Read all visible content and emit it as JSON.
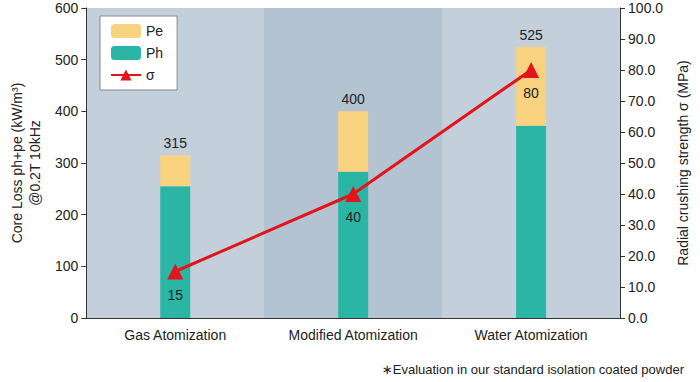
{
  "chart_data": {
    "type": "bar",
    "categories": [
      "Gas Atomization",
      "Modified Atomization",
      "Water Atomization"
    ],
    "series": [
      {
        "name": "Ph",
        "type": "bar",
        "color": "#2bb5a5",
        "values": [
          255,
          283,
          372
        ]
      },
      {
        "name": "Pe",
        "type": "bar",
        "color": "#f8d27e",
        "values": [
          60,
          117,
          153
        ]
      },
      {
        "name": "σ",
        "type": "line",
        "axis": "y2",
        "color": "#e3141c",
        "marker": "triangle",
        "data_labels": true,
        "values": [
          15,
          40,
          80
        ]
      }
    ],
    "totals": [
      315,
      400,
      525
    ],
    "stacked": true,
    "ylabel": "Core Loss ph+pe (kW/m³)\n@0.2T 10kHz",
    "y2label": "Radial crushing strength σ (MPa)",
    "ylim": [
      0,
      600
    ],
    "yticks": [
      0,
      100,
      200,
      300,
      400,
      500,
      600
    ],
    "y2lim": [
      0,
      100
    ],
    "y2ticks": [
      {
        "value": 0,
        "label": "0.0"
      },
      {
        "value": 10,
        "label": "10.0"
      },
      {
        "value": 20,
        "label": "20.0"
      },
      {
        "value": 30,
        "label": "30.0"
      },
      {
        "value": 40,
        "label": "40.0"
      },
      {
        "value": 50,
        "label": "50.0"
      },
      {
        "value": 60,
        "label": "60.0"
      },
      {
        "value": 70,
        "label": "70.0"
      },
      {
        "value": 80,
        "label": "80.0"
      },
      {
        "value": 90,
        "label": "90.0"
      },
      {
        "value": 100,
        "label": "100.0"
      }
    ],
    "legend": "upper left",
    "grid": false,
    "annotations": [
      "∗Evaluation in our standard isolation coated powder"
    ]
  }
}
